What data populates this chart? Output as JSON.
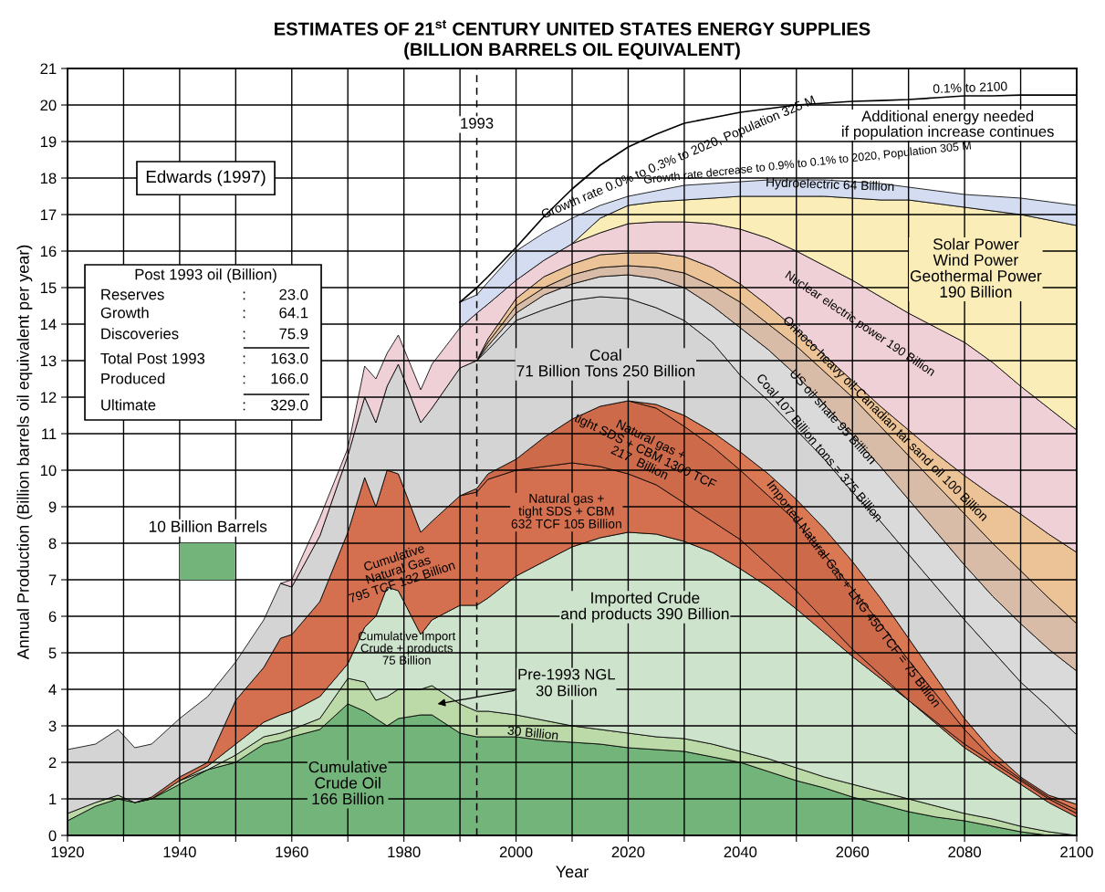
{
  "chart_data": {
    "type": "area",
    "title": "ESTIMATES OF 21$^{st}$ CENTURY UNITED STATES ENERGY SUPPLIES\n(BILLION BARRELS OIL EQUIVALENT)",
    "xlabel": "Year",
    "ylabel": "Annual Production (Billion barrels oil equivalent per year)",
    "stacked": true,
    "x": [
      1920,
      1925,
      1929,
      1932,
      1935,
      1940,
      1945,
      1950,
      1955,
      1958,
      1960,
      1965,
      1970,
      1973,
      1975,
      1977,
      1979,
      1983,
      1985,
      1990,
      1993,
      1995,
      2000,
      2005,
      2010,
      2015,
      2020,
      2025,
      2030,
      2035,
      2040,
      2045,
      2050,
      2055,
      2060,
      2065,
      2070,
      2075,
      2080,
      2085,
      2090,
      2095,
      2100
    ],
    "series": [
      {
        "color": "#72b47a",
        "values": [
          0.4,
          0.8,
          1,
          0.9,
          1,
          1.4,
          1.8,
          2,
          2.5,
          2.6,
          2.7,
          2.9,
          3.6,
          3.4,
          3.2,
          3,
          3.2,
          3.3,
          3.3,
          2.8,
          2.7,
          2.7,
          2.7,
          2.6,
          2.55,
          2.5,
          2.4,
          2.35,
          2.3,
          2.15,
          2,
          1.75,
          1.5,
          1.3,
          1.05,
          0.85,
          0.65,
          0.5,
          0.4,
          0.25,
          0.1,
          0,
          0
        ]
      },
      {
        "color": "#bcd9a8",
        "values": [
          0.2,
          0.1,
          0.1,
          0,
          0,
          0.1,
          0,
          0.2,
          0.2,
          0.2,
          0.2,
          0.3,
          0.7,
          0.8,
          0.5,
          0.8,
          0.8,
          0.7,
          0.8,
          0.8,
          0.7,
          0.7,
          0.6,
          0.55,
          0.45,
          0.4,
          0.4,
          0.35,
          0.35,
          0.35,
          0.3,
          0.35,
          0.35,
          0.3,
          0.35,
          0.35,
          0.35,
          0.3,
          0.2,
          0.2,
          0.15,
          0.1,
          0
        ]
      },
      {
        "color": "#cee3cc",
        "values": [
          null,
          null,
          null,
          null,
          null,
          0,
          0.1,
          0.3,
          0.4,
          0.5,
          0.5,
          0.6,
          0.4,
          1.5,
          2.3,
          3,
          2.7,
          1.5,
          1.8,
          2.7,
          2.9,
          3.1,
          3.8,
          4.35,
          4.9,
          5.25,
          5.5,
          5.55,
          5.4,
          5.25,
          5,
          4.7,
          4.35,
          3.95,
          3.5,
          3.1,
          2.7,
          2.25,
          1.8,
          1.45,
          1.15,
          0.8,
          0.5
        ]
      },
      {
        "color": "#d4704f",
        "values": [
          null,
          null,
          null,
          0,
          0.05,
          0.1,
          0.1,
          1.2,
          1.5,
          2.1,
          2.1,
          2.6,
          3.6,
          4.1,
          3,
          3.2,
          3.2,
          2.8,
          2.7,
          3,
          3.1,
          3.25,
          2.9,
          2.6,
          2.3,
          1.95,
          1.6,
          1.35,
          1.05,
          0.85,
          0.8,
          0.6,
          0.5,
          0.35,
          0.2,
          0.1,
          0,
          0.05,
          0.1,
          0.1,
          0.1,
          0.1,
          0.1
        ]
      },
      {
        "color": "#cc6a4a",
        "values": [
          null,
          null,
          null,
          null,
          null,
          null,
          null,
          null,
          null,
          null,
          null,
          null,
          null,
          null,
          null,
          null,
          null,
          null,
          null,
          0,
          0.1,
          0.15,
          0.3,
          0.8,
          1.2,
          1.65,
          2,
          2.1,
          2.1,
          2.05,
          1.9,
          1.9,
          1.9,
          1.8,
          1.65,
          1.4,
          1.1,
          0.75,
          0.4,
          0.1,
          0.05,
          0.05,
          0.1
        ]
      },
      {
        "color": "#db7854",
        "values": [
          null,
          null,
          null,
          null,
          null,
          null,
          null,
          null,
          null,
          null,
          null,
          null,
          null,
          null,
          null,
          null,
          null,
          null,
          null,
          null,
          null,
          null,
          null,
          null,
          null,
          null,
          0,
          0.1,
          0.3,
          0.4,
          0.5,
          0.6,
          0.6,
          0.7,
          0.75,
          0.7,
          0.6,
          0.45,
          0.3,
          0.2,
          0.05,
          0.05,
          0.15
        ]
      },
      {
        "color": "#d4d4d4",
        "values": [
          1.75,
          1.6,
          1.8,
          1.5,
          1.45,
          1.6,
          1.8,
          1.05,
          1.3,
          1.5,
          1.3,
          1.8,
          2.1,
          2.2,
          2.3,
          2.3,
          3,
          3,
          3.1,
          3.5,
          3.5,
          3.4,
          3.8,
          3.5,
          3.25,
          3,
          2.8,
          2.65,
          2.6,
          2.45,
          2.1,
          2,
          1.9,
          1.9,
          1.9,
          2.1,
          2.3,
          2.5,
          2.7,
          2.75,
          2.6,
          2.4,
          1.9
        ]
      },
      {
        "color": "#dadada",
        "values": [
          null,
          null,
          null,
          null,
          null,
          null,
          null,
          null,
          null,
          null,
          null,
          null,
          null,
          null,
          null,
          null,
          null,
          null,
          null,
          null,
          0,
          0.1,
          0.2,
          0.4,
          0.45,
          0.55,
          0.65,
          0.8,
          0.9,
          1,
          1.3,
          1.4,
          1.5,
          1.5,
          1.55,
          1.5,
          1.5,
          1.5,
          1.5,
          1.5,
          1.6,
          1.6,
          1.75
        ]
      },
      {
        "color": "#d8bca8",
        "values": [
          null,
          null,
          null,
          null,
          null,
          null,
          null,
          null,
          null,
          null,
          null,
          null,
          null,
          null,
          null,
          null,
          null,
          null,
          null,
          null,
          0,
          0.1,
          0.2,
          0.2,
          0.25,
          0.25,
          0.25,
          0.3,
          0.4,
          0.55,
          0.7,
          0.7,
          0.8,
          0.9,
          1.05,
          1.1,
          1.2,
          1.3,
          1.4,
          1.45,
          1.45,
          1.4,
          1.3
        ]
      },
      {
        "color": "#ebc396",
        "values": [
          null,
          null,
          null,
          null,
          null,
          null,
          null,
          null,
          null,
          null,
          null,
          null,
          null,
          null,
          null,
          null,
          null,
          null,
          null,
          null,
          0,
          0.1,
          0.2,
          0.3,
          0.3,
          0.35,
          0.35,
          0.4,
          0.45,
          0.5,
          0.5,
          0.5,
          0.45,
          0.45,
          0.45,
          0.55,
          0.7,
          0.85,
          1.05,
          1.3,
          1.55,
          1.75,
          1.95
        ]
      },
      {
        "color": "#efd0d6",
        "values": [
          null,
          null,
          null,
          null,
          null,
          null,
          null,
          null,
          null,
          0,
          0.2,
          0.5,
          0.2,
          0.85,
          1.2,
          0.9,
          0.8,
          0.9,
          1.2,
          1.1,
          1.3,
          0.95,
          0.5,
          0.45,
          0.55,
          0.6,
          0.8,
          0.85,
          0.95,
          1.2,
          1.5,
          1.85,
          2.15,
          2.45,
          2.75,
          3,
          3.2,
          3.45,
          3.65,
          3.65,
          3.5,
          3.45,
          3.35
        ]
      },
      {
        "color": "#faedb8",
        "values": [
          null,
          null,
          null,
          null,
          null,
          null,
          null,
          null,
          null,
          null,
          null,
          null,
          null,
          null,
          null,
          null,
          null,
          null,
          null,
          null,
          null,
          null,
          null,
          null,
          0,
          0.4,
          0.5,
          0.55,
          0.6,
          0.7,
          0.9,
          1.15,
          1.5,
          1.9,
          2.25,
          2.65,
          3.1,
          3.4,
          3.7,
          4.15,
          4.7,
          5.15,
          5.6
        ]
      },
      {
        "color": "#d3dcf0",
        "values": [
          null,
          null,
          null,
          null,
          null,
          null,
          null,
          null,
          null,
          null,
          null,
          null,
          null,
          null,
          null,
          null,
          null,
          null,
          null,
          0.7,
          0.5,
          0.6,
          0.8,
          0.75,
          0.7,
          0.35,
          0.25,
          0.3,
          0.4,
          0.4,
          0.4,
          0.45,
          0.45,
          0.45,
          0.45,
          0.45,
          0.35,
          0.35,
          0.35,
          0.4,
          0.45,
          0.5,
          0.55
        ]
      },
      {
        "type": "line",
        "color": "#000000",
        "values": [
          null,
          null,
          null,
          null,
          null,
          null,
          null,
          null,
          null,
          null,
          null,
          null,
          null,
          null,
          null,
          null,
          null,
          null,
          null,
          14.6,
          15,
          15.3,
          16.1,
          16.95,
          17.7,
          18.35,
          18.85,
          19.2,
          19.5,
          19.65,
          19.8,
          19.9,
          20,
          20.05,
          20.1,
          20.12,
          20.15,
          20.2,
          20.25,
          20.25,
          20.27,
          20.27,
          20.27
        ]
      }
    ],
    "xlim": [
      1920,
      2100
    ],
    "ylim": [
      0,
      21
    ],
    "xticks": [
      1920,
      {
        "value": 1930,
        "label": null
      },
      1940,
      {
        "value": 1950,
        "label": null
      },
      1960,
      {
        "value": 1970,
        "label": null
      },
      1980,
      {
        "value": 1990,
        "label": null
      },
      2000,
      {
        "value": 2010,
        "label": null
      },
      2020,
      {
        "value": 2030,
        "label": null
      },
      2040,
      {
        "value": 2050,
        "label": null
      },
      2060,
      {
        "value": 2070,
        "label": null
      },
      2080,
      {
        "value": 2090,
        "label": null
      },
      2100
    ],
    "yticks": [
      0,
      1,
      2,
      3,
      4,
      5,
      6,
      7,
      8,
      9,
      10,
      11,
      12,
      13,
      14,
      15,
      16,
      17,
      18,
      19,
      20,
      21
    ],
    "grid": true,
    "ref_lines": [
      {
        "axis": "x",
        "value": 1993,
        "label": "1993",
        "color": "#000000",
        "line_style": "dashed"
      }
    ],
    "annotations": [
      "Cumulative\nCrude Oil\n166 Billion",
      "30 Billion",
      "Pre-1993 NGL\n30 Billion",
      "Cumulative Import\nCrude + products\n75 Billion",
      "Imported Crude\nand products 390 Billion",
      "Cumulative\nNatural Gas\n795 TCF 132 Billion",
      "Natural gas +\ntight SDS + CBM\n632 TCF 105 Billion",
      "Natural gas +\ntight SDS + CBM 1300 TCF\n217  Billion",
      "Imported Natural Gas + LNG 450 TCF = 75 Billion",
      "Coal\n71 Billion Tons 250 Billion",
      "Coal 107 Billion tons = 375 Billion",
      "US oil shale 95 Billion",
      "Orinoco heavy oil-Canadian tar sand oil 100 Billion",
      "Nuclear electric power 190 Billion",
      "Solar Power\nWind Power\nGeothermal Power\n190 Billion",
      "Hydroelectric 64 Billion",
      "Growth rate decrease to 0.9% to 0.1% to 2020, Population 305 M",
      "Growth rate 0.0% to 0.3% to 2020, Population 325 M",
      "0.1% to 2100",
      "Additional energy needed\nif population increase continues",
      "10 Billion Barrels",
      "Edwards (1997)",
      "Post 1993 oil (Billion)",
      "Reserves : 23.0",
      "Growth : 64.1",
      "Discoveries : 75.9",
      "Total Post 1993 : 163.0",
      "Produced : 166.0",
      "Ultimate : 329.0"
    ]
  }
}
